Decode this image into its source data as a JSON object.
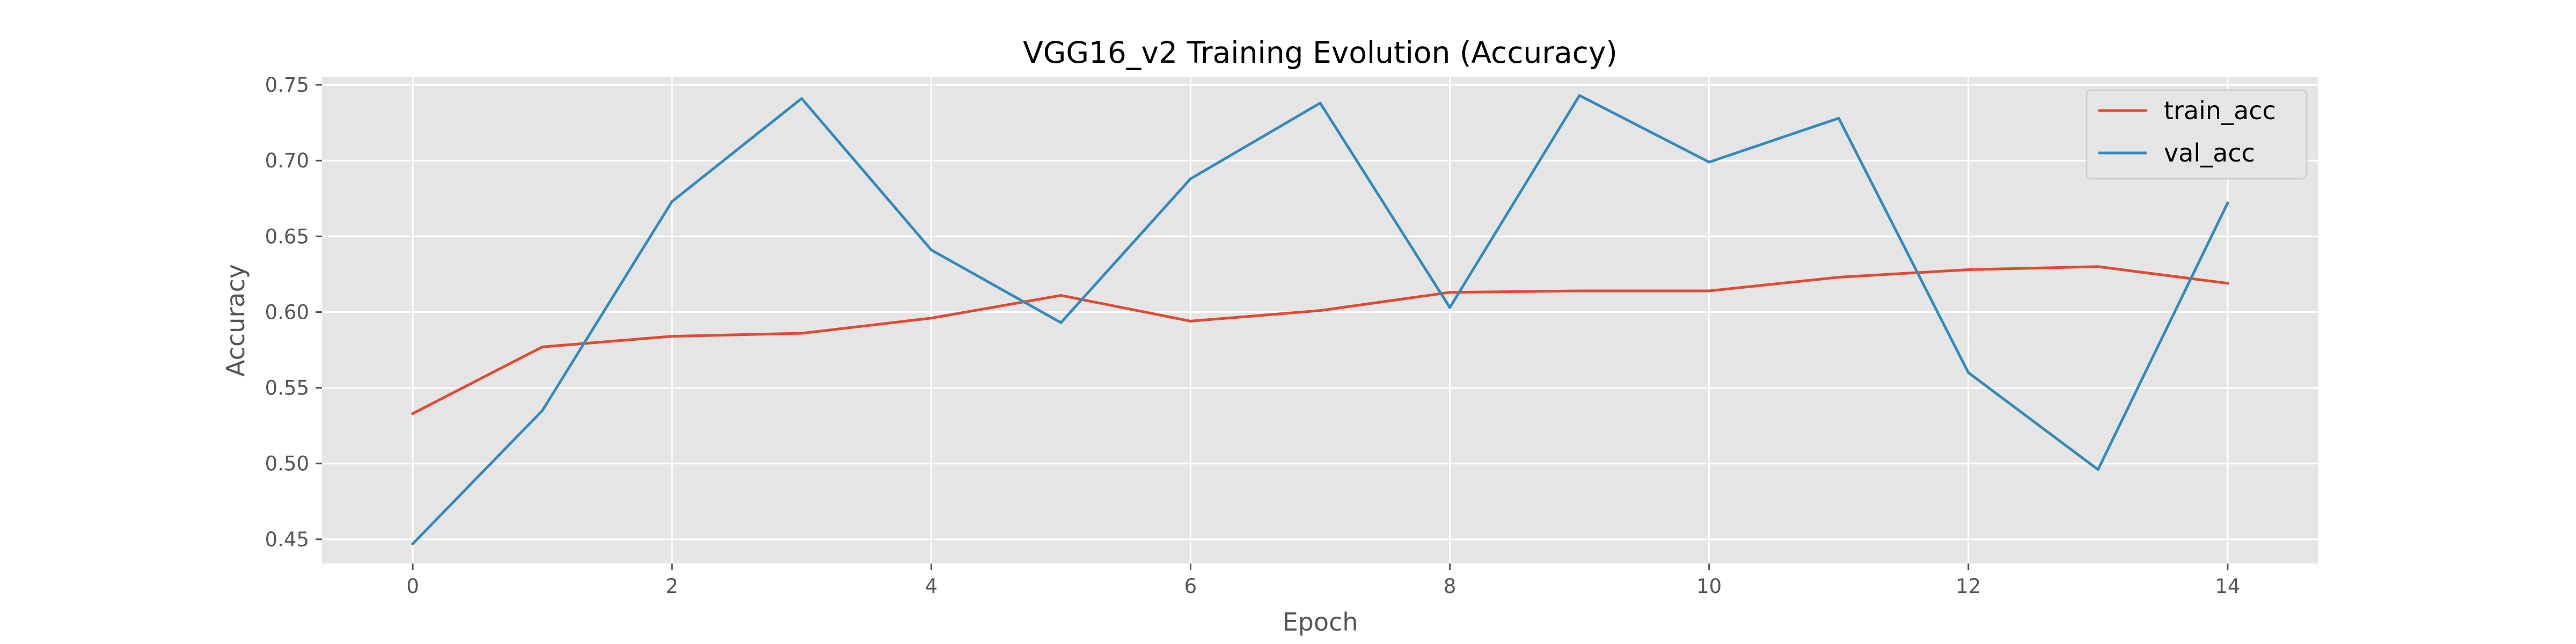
{
  "chart_data": {
    "type": "line",
    "title": "VGG16_v2 Training Evolution (Accuracy)",
    "xlabel": "Epoch",
    "ylabel": "Accuracy",
    "xlim": [
      -0.7,
      14.7
    ],
    "ylim": [
      0.434,
      0.755
    ],
    "grid": true,
    "legend_position": "top-right",
    "x": [
      0,
      1,
      2,
      3,
      4,
      5,
      6,
      7,
      8,
      9,
      10,
      11,
      12,
      13,
      14
    ],
    "x_ticks": [
      0,
      2,
      4,
      6,
      8,
      10,
      12,
      14
    ],
    "x_tick_labels": [
      "0",
      "2",
      "4",
      "6",
      "8",
      "10",
      "12",
      "14"
    ],
    "y_ticks": [
      0.45,
      0.5,
      0.55,
      0.6,
      0.65,
      0.7,
      0.75
    ],
    "y_tick_labels": [
      "0.45",
      "0.50",
      "0.55",
      "0.60",
      "0.65",
      "0.70",
      "0.75"
    ],
    "series": [
      {
        "name": "train_acc",
        "color": "#E24A33",
        "values": [
          0.533,
          0.577,
          0.584,
          0.586,
          0.596,
          0.611,
          0.594,
          0.601,
          0.613,
          0.614,
          0.614,
          0.623,
          0.628,
          0.63,
          0.619
        ]
      },
      {
        "name": "val_acc",
        "color": "#348ABD",
        "values": [
          0.447,
          0.535,
          0.673,
          0.741,
          0.641,
          0.593,
          0.688,
          0.738,
          0.603,
          0.743,
          0.699,
          0.728,
          0.56,
          0.496,
          0.672
        ]
      }
    ],
    "plot_background": "#E5E5E5"
  }
}
